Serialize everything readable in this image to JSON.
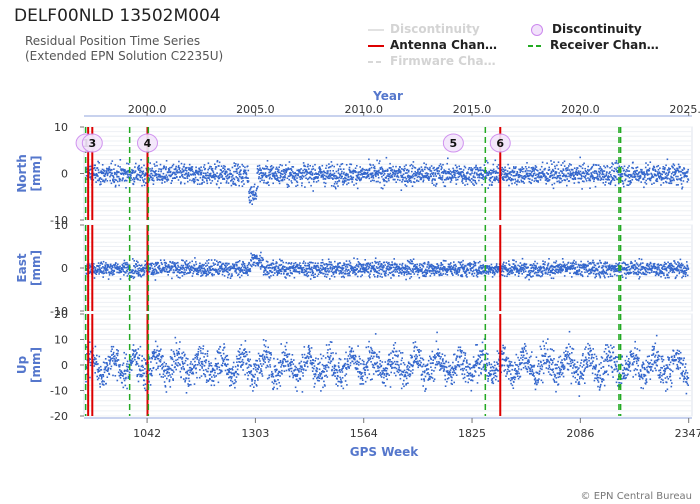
{
  "title": "DELF00NLD 13502M004",
  "subtitle_line1": "Residual Position Time Series",
  "subtitle_line2": "(Extended EPN Solution C2235U)",
  "footer": "© EPN Central Bureau",
  "colors": {
    "data": "#3366cc",
    "antenna": "#dd0000",
    "receiver": "#22aa22",
    "firmware": "#d8d8d8",
    "axis_label": "#5577cc",
    "discontinuity": "#cc88ee"
  },
  "legend": [
    {
      "key": "discontinuity_dim",
      "label": "Discontinuity",
      "style": "line-light"
    },
    {
      "key": "discontinuity",
      "label": "Discontinuity",
      "style": "marker"
    },
    {
      "key": "antenna",
      "label": "Antenna Chan…",
      "style": "line-red"
    },
    {
      "key": "receiver",
      "label": "Receiver Chan…",
      "style": "dash-green"
    },
    {
      "key": "firmware",
      "label": "Firmware Cha…",
      "style": "dash-light"
    }
  ],
  "chart_data": {
    "type": "scatter",
    "top_axis": {
      "label": "Year",
      "ticks": [
        "2000.0",
        "2005.0",
        "2010.0",
        "2015.0",
        "2020.0",
        "2025.0"
      ],
      "tick_weeks": [
        1042.0,
        1303.0,
        1564.0,
        1825.0,
        2086.0,
        2347.0
      ]
    },
    "x_axis": {
      "label": "GPS Week",
      "ticks": [
        "1042",
        "1303",
        "1564",
        "1825",
        "2086",
        "2347"
      ],
      "range": [
        890,
        2355
      ]
    },
    "panels": [
      {
        "name": "north",
        "ylabel": "North [mm]",
        "yticks": [
          "10",
          "0",
          "-10"
        ],
        "ylim": [
          -10,
          10
        ]
      },
      {
        "name": "east",
        "ylabel": "East [mm]",
        "yticks": [
          "10",
          "0",
          "-10"
        ],
        "ylim": [
          -10,
          10
        ]
      },
      {
        "name": "up",
        "ylabel": "Up [mm]",
        "yticks": [
          "20",
          "10",
          "0",
          "-10",
          "-20"
        ],
        "ylim": [
          -20,
          20
        ]
      }
    ],
    "antenna_changes_week": [
      900,
      910,
      1043,
      1893
    ],
    "receiver_changes_week": [
      894,
      1000,
      1045,
      1857,
      2179,
      2183
    ],
    "discontinuities": [
      {
        "label": "1",
        "week": 895
      },
      {
        "label": "3",
        "week": 910
      },
      {
        "label": "4",
        "week": 1043
      },
      {
        "label": "5",
        "week": 1780
      },
      {
        "label": "6",
        "week": 1893
      }
    ],
    "series_noise_mm": {
      "north": 1.6,
      "east": 1.3,
      "up": 4.5
    }
  }
}
